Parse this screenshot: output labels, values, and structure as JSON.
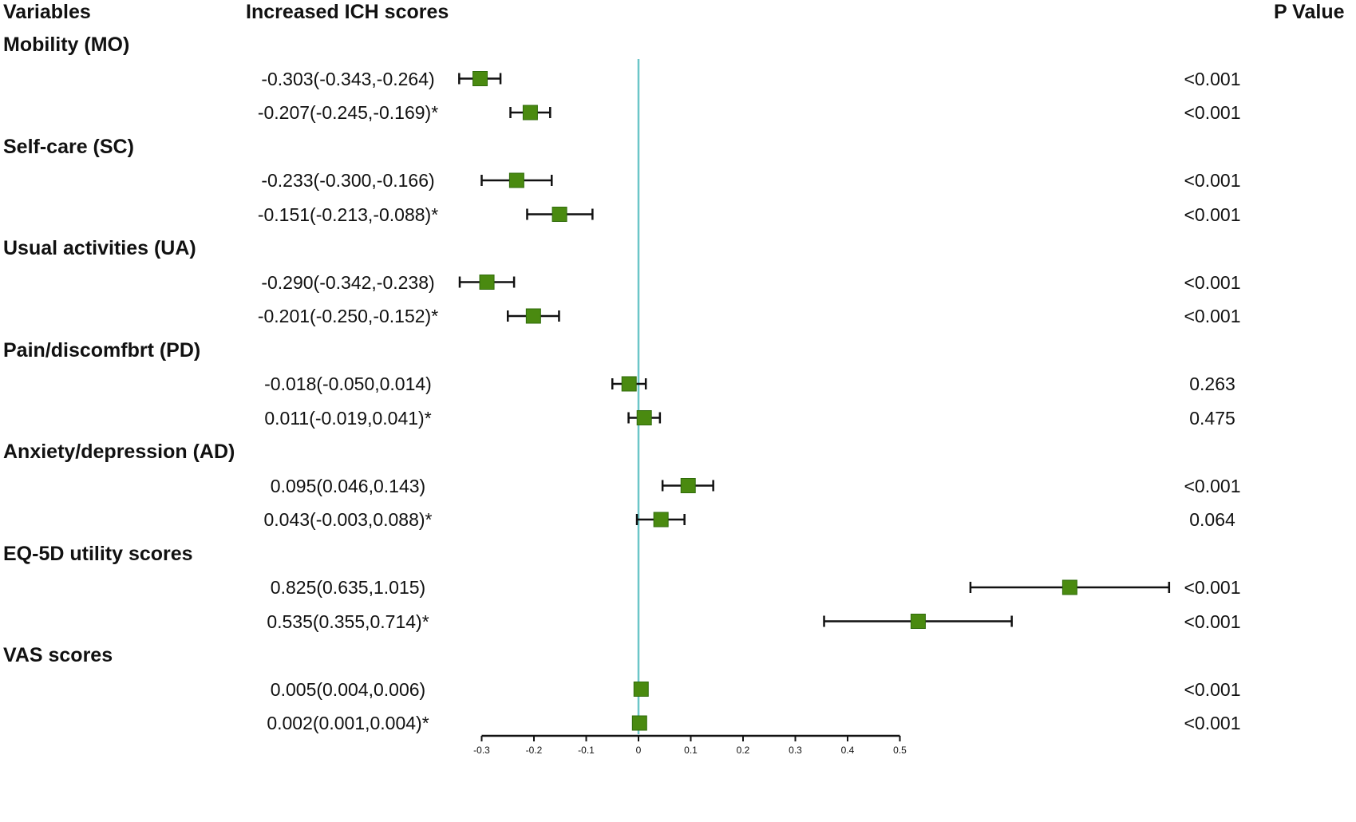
{
  "headers": {
    "variables": "Variables",
    "estimate": "Increased ICH scores",
    "pvalue": "P Value"
  },
  "colors": {
    "marker": "#4a8a10",
    "marker_edge": "#2f6b0a",
    "reference_line": "#6cc6c8",
    "whisker": "#111111"
  },
  "chart_data": {
    "type": "forest",
    "reference_value": 0,
    "xlim": [
      -0.3,
      0.5
    ],
    "ticks": [
      -0.3,
      -0.2,
      -0.1,
      0,
      0.1,
      0.2,
      0.3,
      0.4,
      0.5
    ],
    "tick_labels": [
      "-0.3",
      "-0.2",
      "-0.1",
      "0",
      "0.1",
      "0.2",
      "0.3",
      "0.4",
      "0.5"
    ],
    "groups": [
      {
        "name": "Mobility (MO)",
        "rows": [
          {
            "label": "-0.303(-0.343,-0.264)",
            "est": -0.303,
            "lo": -0.343,
            "hi": -0.264,
            "p": "<0.001"
          },
          {
            "label": "-0.207(-0.245,-0.169)*",
            "est": -0.207,
            "lo": -0.245,
            "hi": -0.169,
            "p": "<0.001"
          }
        ]
      },
      {
        "name": "Self-care (SC)",
        "rows": [
          {
            "label": "-0.233(-0.300,-0.166)",
            "est": -0.233,
            "lo": -0.3,
            "hi": -0.166,
            "p": "<0.001"
          },
          {
            "label": "-0.151(-0.213,-0.088)*",
            "est": -0.151,
            "lo": -0.213,
            "hi": -0.088,
            "p": "<0.001"
          }
        ]
      },
      {
        "name": "Usual activities (UA)",
        "rows": [
          {
            "label": "-0.290(-0.342,-0.238)",
            "est": -0.29,
            "lo": -0.342,
            "hi": -0.238,
            "p": "<0.001"
          },
          {
            "label": "-0.201(-0.250,-0.152)*",
            "est": -0.201,
            "lo": -0.25,
            "hi": -0.152,
            "p": "<0.001"
          }
        ]
      },
      {
        "name": "Pain/discomfbrt (PD)",
        "rows": [
          {
            "label": "-0.018(-0.050,0.014)",
            "est": -0.018,
            "lo": -0.05,
            "hi": 0.014,
            "p": "0.263"
          },
          {
            "label": "0.011(-0.019,0.041)*",
            "est": 0.011,
            "lo": -0.019,
            "hi": 0.041,
            "p": "0.475"
          }
        ]
      },
      {
        "name": "Anxiety/depression (AD)",
        "rows": [
          {
            "label": "0.095(0.046,0.143)",
            "est": 0.095,
            "lo": 0.046,
            "hi": 0.143,
            "p": "<0.001"
          },
          {
            "label": "0.043(-0.003,0.088)*",
            "est": 0.043,
            "lo": -0.003,
            "hi": 0.088,
            "p": "0.064"
          }
        ]
      },
      {
        "name": "EQ-5D utility scores",
        "rows": [
          {
            "label": "0.825(0.635,1.015)",
            "est": 0.825,
            "lo": 0.635,
            "hi": 1.015,
            "p": "<0.001"
          },
          {
            "label": "0.535(0.355,0.714)*",
            "est": 0.535,
            "lo": 0.355,
            "hi": 0.714,
            "p": "<0.001"
          }
        ]
      },
      {
        "name": "VAS scores",
        "rows": [
          {
            "label": "0.005(0.004,0.006)",
            "est": 0.005,
            "lo": 0.004,
            "hi": 0.006,
            "p": "<0.001"
          },
          {
            "label": "0.002(0.001,0.004)*",
            "est": 0.002,
            "lo": 0.001,
            "hi": 0.004,
            "p": "<0.001"
          }
        ]
      }
    ]
  }
}
